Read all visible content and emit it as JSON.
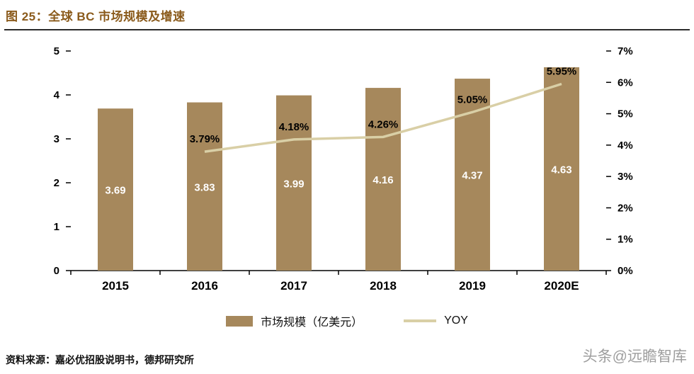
{
  "header": {
    "title": "图 25：全球 BC 市场规模及增速"
  },
  "legend": [
    {
      "swatch": "bar",
      "label": "市场规模（亿美元）"
    },
    {
      "swatch": "line",
      "label": "YOY"
    }
  ],
  "footer": {
    "source": "资料来源：嘉必优招股说明书，德邦研究所",
    "watermark": "头条@远瞻智库"
  },
  "colors": {
    "title": "#8A5A1B",
    "bar": "#A6885C",
    "line": "#D9CFA6",
    "bar_label": "#FFFFFF",
    "axis": "#000000",
    "watermark": "#9E9E9E"
  },
  "chart_data": {
    "type": "bar+line",
    "title": "全球 BC 市场规模及增速",
    "categories": [
      "2015",
      "2016",
      "2017",
      "2018",
      "2019",
      "2020E"
    ],
    "series": [
      {
        "name": "市场规模（亿美元）",
        "type": "bar",
        "axis": "left",
        "values": [
          3.69,
          3.83,
          3.99,
          4.16,
          4.37,
          4.63
        ]
      },
      {
        "name": "YOY",
        "type": "line",
        "axis": "right",
        "unit": "%",
        "values": [
          null,
          3.79,
          4.18,
          4.26,
          5.05,
          5.95
        ]
      }
    ],
    "left_axis": {
      "min": 0,
      "max": 5,
      "ticks": [
        0,
        1,
        2,
        3,
        4,
        5
      ]
    },
    "right_axis": {
      "min": 0,
      "max": 7,
      "ticks": [
        "0%",
        "1%",
        "2%",
        "3%",
        "4%",
        "5%",
        "6%",
        "7%"
      ]
    },
    "grid": false,
    "legend_position": "bottom"
  }
}
